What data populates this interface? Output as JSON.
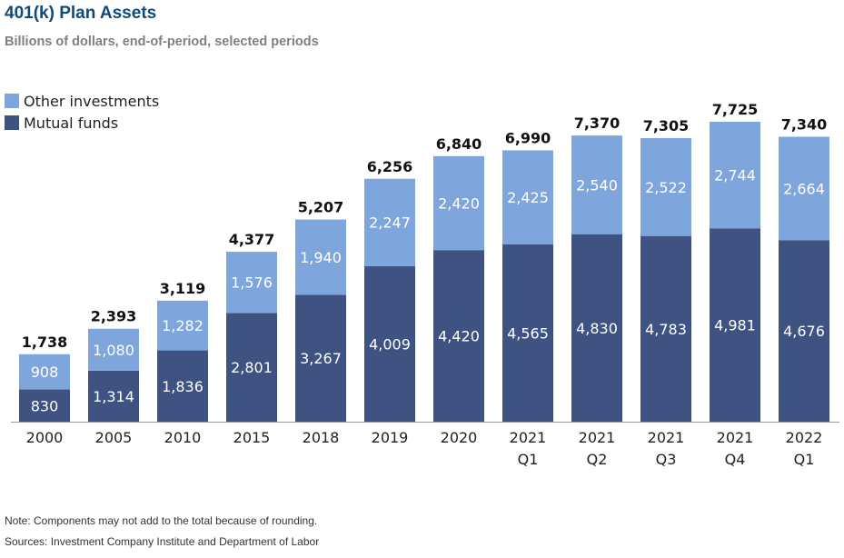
{
  "header": {
    "title": "401(k) Plan Assets",
    "subtitle": "Billions of dollars, end-of-period, selected periods"
  },
  "colors": {
    "other": "#7ea6dc",
    "mutual": "#3e5382",
    "title": "#0e4a7c",
    "subtitle": "#808080",
    "text": "#222222"
  },
  "chart_data": {
    "type": "bar",
    "stacked": true,
    "categories": [
      [
        "2000"
      ],
      [
        "2005"
      ],
      [
        "2010"
      ],
      [
        "2015"
      ],
      [
        "2018"
      ],
      [
        "2019"
      ],
      [
        "2020"
      ],
      [
        "2021",
        "Q1"
      ],
      [
        "2021",
        "Q2"
      ],
      [
        "2021",
        "Q3"
      ],
      [
        "2021",
        "Q4"
      ],
      [
        "2022",
        "Q1"
      ]
    ],
    "series": [
      {
        "name": "Mutual funds",
        "values": [
          830,
          1314,
          1836,
          2801,
          3267,
          4009,
          4420,
          4565,
          4830,
          4783,
          4981,
          4676
        ]
      },
      {
        "name": "Other investments",
        "values": [
          908,
          1080,
          1282,
          1576,
          1940,
          2247,
          2420,
          2425,
          2540,
          2522,
          2744,
          2664
        ]
      }
    ],
    "totals": [
      1738,
      2393,
      3119,
      4377,
      5207,
      6256,
      6840,
      6990,
      7370,
      7305,
      7725,
      7340
    ],
    "ylim": [
      0,
      7725
    ],
    "y_axis_shown": false,
    "grid": false,
    "legend_position": "top-left"
  },
  "legend": [
    {
      "label": "Other investments",
      "color": "#7ea6dc"
    },
    {
      "label": "Mutual funds",
      "color": "#3e5382"
    }
  ],
  "notes": {
    "note": "Note: Components may not add to the total because of rounding.",
    "sources": "Sources: Investment Company Institute and Department of Labor"
  }
}
